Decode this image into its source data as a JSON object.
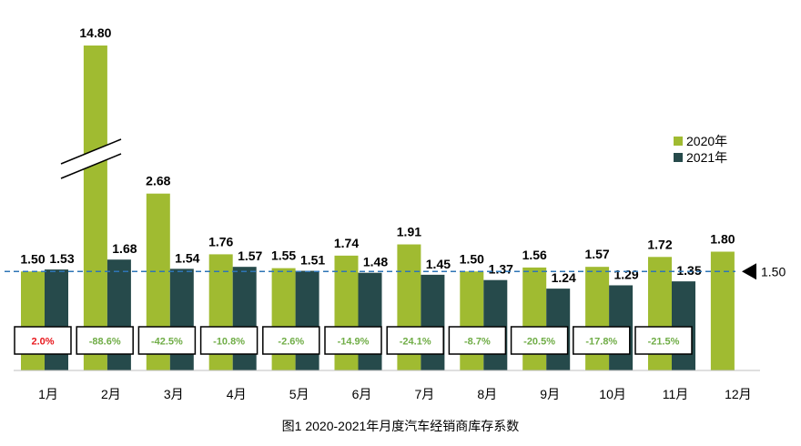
{
  "caption": "图1  2020-2021年月度汽车经销商库存系数",
  "legend": [
    {
      "label": "2020年",
      "color": "#a0bb31"
    },
    {
      "label": "2021年",
      "color": "#264a4b"
    }
  ],
  "reference_line": {
    "value": 1.5,
    "label": "1.50",
    "color": "#2e75b6"
  },
  "colors": {
    "positive_pct": "#e8191e",
    "negative_pct": "#70ad47"
  },
  "chart_data": {
    "type": "bar",
    "categories": [
      "1月",
      "2月",
      "3月",
      "4月",
      "5月",
      "6月",
      "7月",
      "8月",
      "9月",
      "10月",
      "11月",
      "12月"
    ],
    "series": [
      {
        "name": "2020年",
        "values": [
          1.5,
          14.8,
          2.68,
          1.76,
          1.55,
          1.74,
          1.91,
          1.5,
          1.56,
          1.57,
          1.72,
          1.8
        ],
        "labels": [
          "1.50",
          "14.80",
          "2.68",
          "1.76",
          "1.55",
          "1.74",
          "1.91",
          "1.50",
          "1.56",
          "1.57",
          "1.72",
          "1.80"
        ]
      },
      {
        "name": "2021年",
        "values": [
          1.53,
          1.68,
          1.54,
          1.57,
          1.51,
          1.48,
          1.45,
          1.37,
          1.24,
          1.29,
          1.35,
          null
        ],
        "labels": [
          "1.53",
          "1.68",
          "1.54",
          "1.57",
          "1.51",
          "1.48",
          "1.45",
          "1.37",
          "1.24",
          "1.29",
          "1.35",
          ""
        ]
      }
    ],
    "yoy_change": [
      "2.0%",
      "-88.6%",
      "-42.5%",
      "-10.8%",
      "-2.6%",
      "-14.9%",
      "-24.1%",
      "-8.7%",
      "-20.5%",
      "-17.8%",
      "-21.5%"
    ],
    "axis_break": true,
    "ylim": [
      0,
      3.0
    ]
  }
}
